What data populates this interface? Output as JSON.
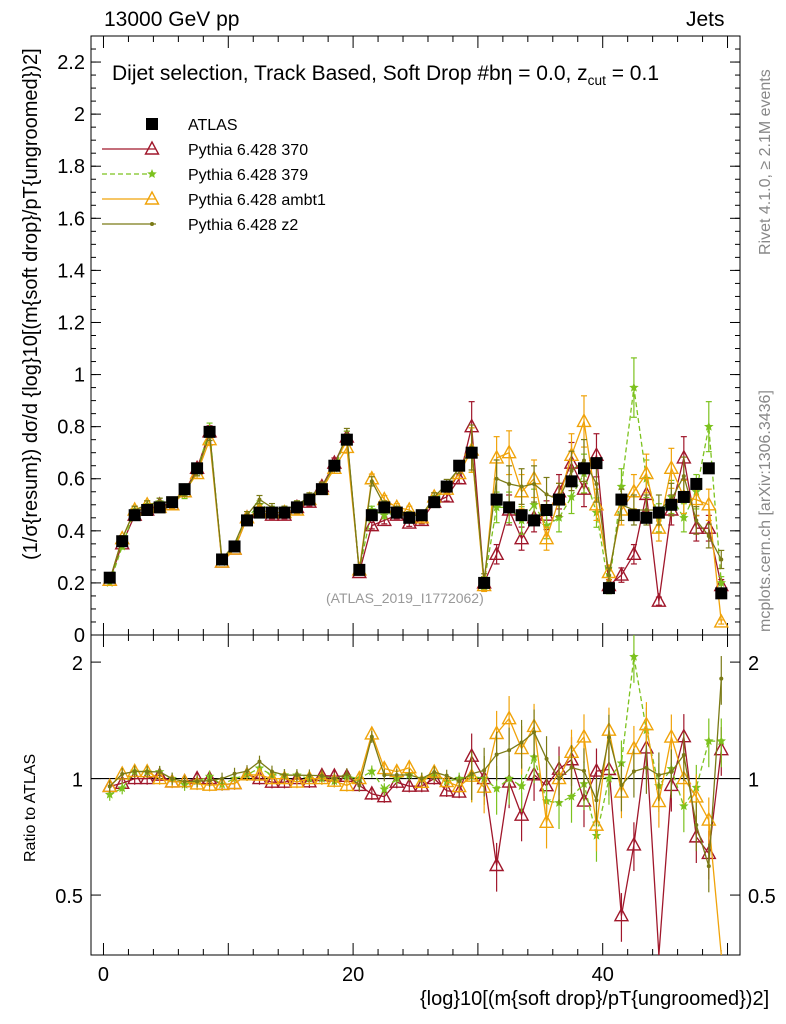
{
  "header": {
    "left": "13000 GeV pp",
    "right": "Jets"
  },
  "side_labels": {
    "rivet": "Rivet 4.1.0, ≥ 2.1M events",
    "mcplots": "mcplots.cern.ch [arXiv:1306.3436]"
  },
  "plot": {
    "title": "Dijet selection, Track Based, Soft Drop #b",
    "title_param": "η = 0.0, z",
    "title_sub": "cut",
    "title_tail": " = 0.1",
    "watermark": "(ATLAS_2019_I1772062)",
    "ylabel_main": "(1/σ{resum}) dσ/d {log}10[(m{soft drop}/pT{ungroomed})2]",
    "ylabel_ratio": "Ratio to ATLAS",
    "xlabel": "{log}10[(m{soft drop}/pT{ungroomed})2]"
  },
  "colors": {
    "atlas": "#000000",
    "p370": "#a0172b",
    "p379": "#7cc21e",
    "ambt1": "#f0a30a",
    "z2": "#7a7a16"
  },
  "chart_data": {
    "type": "line",
    "x": [
      0.5,
      1.5,
      2.5,
      3.5,
      4.5,
      5.5,
      6.5,
      7.5,
      8.5,
      9.5,
      10.5,
      11.5,
      12.5,
      13.5,
      14.5,
      15.5,
      16.5,
      17.5,
      18.5,
      19.5,
      20.5,
      21.5,
      22.5,
      23.5,
      24.5,
      25.5,
      26.5,
      27.5,
      28.5,
      29.5,
      30.5,
      31.5,
      32.5,
      33.5,
      34.5,
      35.5,
      36.5,
      37.5,
      38.5,
      39.5,
      40.5,
      41.5,
      42.5,
      43.5,
      44.5,
      45.5,
      46.5,
      47.5,
      48.5,
      49.5
    ],
    "xlim": [
      -1,
      51
    ],
    "xticks": [
      0,
      20,
      40
    ],
    "main_ylim": [
      0,
      2.3
    ],
    "main_yticks": [
      0,
      0.2,
      0.4,
      0.6,
      0.8,
      1,
      1.2,
      1.4,
      1.6,
      1.8,
      2,
      2.2
    ],
    "ratio_ylim": [
      0.35,
      2.35
    ],
    "ratio_yticks": [
      0.5,
      1,
      2
    ],
    "series": [
      {
        "name": "ATLAS",
        "key": "atlas",
        "marker": "square",
        "dashed": false,
        "values": [
          0.22,
          0.36,
          0.46,
          0.48,
          0.49,
          0.51,
          0.56,
          0.64,
          0.78,
          0.29,
          0.34,
          0.44,
          0.47,
          0.47,
          0.47,
          0.49,
          0.52,
          0.56,
          0.65,
          0.75,
          0.25,
          0.46,
          0.49,
          0.47,
          0.45,
          0.46,
          0.51,
          0.57,
          0.65,
          0.7,
          0.2,
          0.52,
          0.49,
          0.46,
          0.44,
          0.48,
          0.52,
          0.59,
          0.64,
          0.66,
          0.18,
          0.52,
          0.46,
          0.45,
          0.47,
          0.5,
          0.53,
          0.58,
          0.64,
          0.16
        ]
      },
      {
        "name": "Pythia 6.428 370",
        "key": "p370",
        "marker": "triangle",
        "dashed": false,
        "values": [
          0.21,
          0.35,
          0.46,
          0.48,
          0.5,
          0.5,
          0.55,
          0.64,
          0.78,
          0.28,
          0.33,
          0.45,
          0.47,
          0.46,
          0.46,
          0.49,
          0.51,
          0.57,
          0.66,
          0.76,
          0.24,
          0.42,
          0.44,
          0.46,
          0.43,
          0.44,
          0.51,
          0.53,
          0.6,
          0.8,
          0.2,
          0.31,
          0.48,
          0.37,
          0.45,
          0.46,
          0.55,
          0.66,
          0.56,
          0.69,
          0.19,
          0.23,
          0.31,
          0.54,
          0.13,
          0.48,
          0.68,
          0.41,
          0.41,
          0.19
        ]
      },
      {
        "name": "Pythia 6.428 379",
        "key": "p379",
        "marker": "star",
        "dashed": true,
        "values": [
          0.2,
          0.34,
          0.48,
          0.5,
          0.51,
          0.51,
          0.54,
          0.63,
          0.79,
          0.28,
          0.34,
          0.45,
          0.5,
          0.48,
          0.48,
          0.5,
          0.52,
          0.56,
          0.64,
          0.76,
          0.25,
          0.48,
          0.46,
          0.47,
          0.46,
          0.46,
          0.52,
          0.56,
          0.65,
          0.71,
          0.2,
          0.49,
          0.49,
          0.44,
          0.5,
          0.42,
          0.45,
          0.53,
          0.62,
          0.47,
          0.18,
          0.57,
          0.95,
          0.6,
          0.45,
          0.53,
          0.45,
          0.55,
          0.8,
          0.2
        ]
      },
      {
        "name": "Pythia 6.428 ambt1",
        "key": "ambt1",
        "marker": "triangle",
        "dashed": false,
        "values": [
          0.21,
          0.37,
          0.48,
          0.5,
          0.49,
          0.5,
          0.55,
          0.62,
          0.75,
          0.28,
          0.33,
          0.45,
          0.48,
          0.47,
          0.47,
          0.48,
          0.52,
          0.56,
          0.64,
          0.72,
          0.25,
          0.6,
          0.52,
          0.49,
          0.48,
          0.45,
          0.53,
          0.56,
          0.62,
          0.71,
          0.19,
          0.68,
          0.7,
          0.55,
          0.6,
          0.37,
          0.52,
          0.69,
          0.82,
          0.5,
          0.24,
          0.48,
          0.55,
          0.62,
          0.41,
          0.64,
          0.53,
          0.52,
          0.5,
          0.05
        ]
      },
      {
        "name": "Pythia 6.428 z2",
        "key": "z2",
        "marker": "dot",
        "dashed": false,
        "values": [
          0.21,
          0.37,
          0.48,
          0.5,
          0.51,
          0.51,
          0.55,
          0.63,
          0.77,
          0.29,
          0.35,
          0.46,
          0.52,
          0.49,
          0.48,
          0.5,
          0.53,
          0.57,
          0.65,
          0.77,
          0.24,
          0.59,
          0.5,
          0.48,
          0.46,
          0.46,
          0.53,
          0.58,
          0.64,
          0.72,
          0.21,
          0.6,
          0.58,
          0.57,
          0.58,
          0.54,
          0.52,
          0.63,
          0.67,
          0.58,
          0.23,
          0.5,
          0.48,
          0.48,
          0.48,
          0.52,
          0.61,
          0.44,
          0.38,
          0.29
        ]
      }
    ],
    "legend": [
      "ATLAS",
      "Pythia 6.428 370",
      "Pythia 6.428 379",
      "Pythia 6.428 ambt1",
      "Pythia 6.428 z2"
    ],
    "legend_placement": "top-left"
  }
}
